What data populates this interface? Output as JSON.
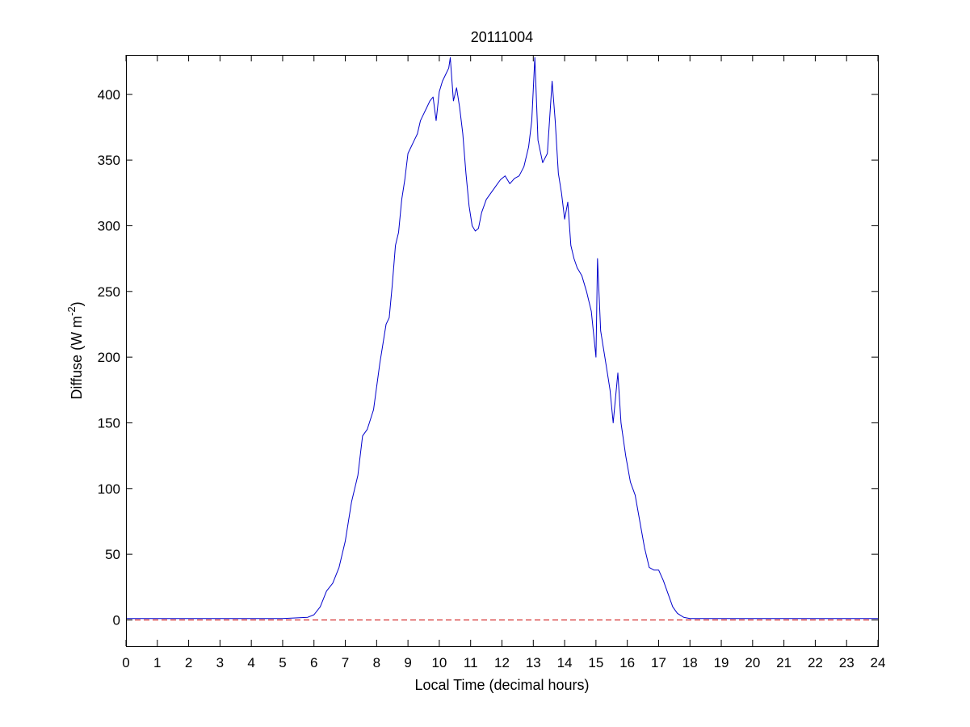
{
  "chart_data": {
    "type": "line",
    "title": "20111004",
    "xlabel": "Local Time (decimal hours)",
    "ylabel_main": "Diffuse (W m",
    "ylabel_sup": "-2",
    "ylabel_close": ")",
    "xlim": [
      0,
      24
    ],
    "ylim": [
      -20,
      430
    ],
    "xticks": [
      0,
      1,
      2,
      3,
      4,
      5,
      6,
      7,
      8,
      9,
      10,
      11,
      12,
      13,
      14,
      15,
      16,
      17,
      18,
      19,
      20,
      21,
      22,
      23,
      24
    ],
    "yticks": [
      0,
      50,
      100,
      150,
      200,
      250,
      300,
      350,
      400
    ],
    "grid": false,
    "legend": "none",
    "series": [
      {
        "color": "#0000cc",
        "style": "solid",
        "x": [
          0,
          1,
          2,
          3,
          4,
          5,
          5.8,
          6.0,
          6.2,
          6.4,
          6.6,
          6.8,
          7.0,
          7.2,
          7.4,
          7.55,
          7.7,
          7.9,
          8.1,
          8.3,
          8.4,
          8.5,
          8.6,
          8.7,
          8.8,
          8.9,
          9.0,
          9.1,
          9.2,
          9.3,
          9.4,
          9.5,
          9.6,
          9.7,
          9.8,
          9.9,
          10.0,
          10.1,
          10.2,
          10.3,
          10.35,
          10.45,
          10.55,
          10.65,
          10.75,
          10.85,
          10.95,
          11.05,
          11.15,
          11.25,
          11.35,
          11.5,
          11.65,
          11.8,
          11.95,
          12.1,
          12.25,
          12.4,
          12.55,
          12.7,
          12.85,
          12.95,
          13.05,
          13.15,
          13.3,
          13.45,
          13.6,
          13.7,
          13.8,
          13.9,
          14.0,
          14.1,
          14.2,
          14.3,
          14.4,
          14.55,
          14.7,
          14.85,
          15.0,
          15.05,
          15.15,
          15.25,
          15.35,
          15.45,
          15.55,
          15.7,
          15.8,
          15.95,
          16.1,
          16.25,
          16.4,
          16.55,
          16.7,
          16.85,
          17.0,
          17.15,
          17.3,
          17.45,
          17.6,
          17.8,
          18.0,
          19,
          20,
          21,
          22,
          23,
          24
        ],
        "y": [
          1,
          1,
          1,
          1,
          1,
          1,
          2,
          4,
          10,
          22,
          28,
          40,
          60,
          90,
          110,
          140,
          145,
          160,
          195,
          225,
          230,
          255,
          285,
          295,
          320,
          335,
          355,
          360,
          365,
          370,
          380,
          385,
          390,
          395,
          398,
          380,
          402,
          410,
          415,
          420,
          428,
          395,
          405,
          390,
          370,
          340,
          315,
          300,
          296,
          298,
          310,
          320,
          325,
          330,
          335,
          338,
          332,
          336,
          338,
          345,
          360,
          380,
          428,
          365,
          348,
          355,
          410,
          380,
          340,
          325,
          305,
          318,
          285,
          275,
          268,
          262,
          250,
          235,
          200,
          275,
          220,
          205,
          190,
          175,
          150,
          188,
          150,
          125,
          105,
          95,
          75,
          55,
          40,
          38,
          38,
          30,
          20,
          10,
          5,
          2,
          1,
          1,
          1,
          1,
          1,
          1,
          1
        ]
      },
      {
        "color": "#cc0000",
        "style": "dashed",
        "x": [
          0,
          24
        ],
        "y": [
          0,
          0
        ]
      }
    ]
  }
}
